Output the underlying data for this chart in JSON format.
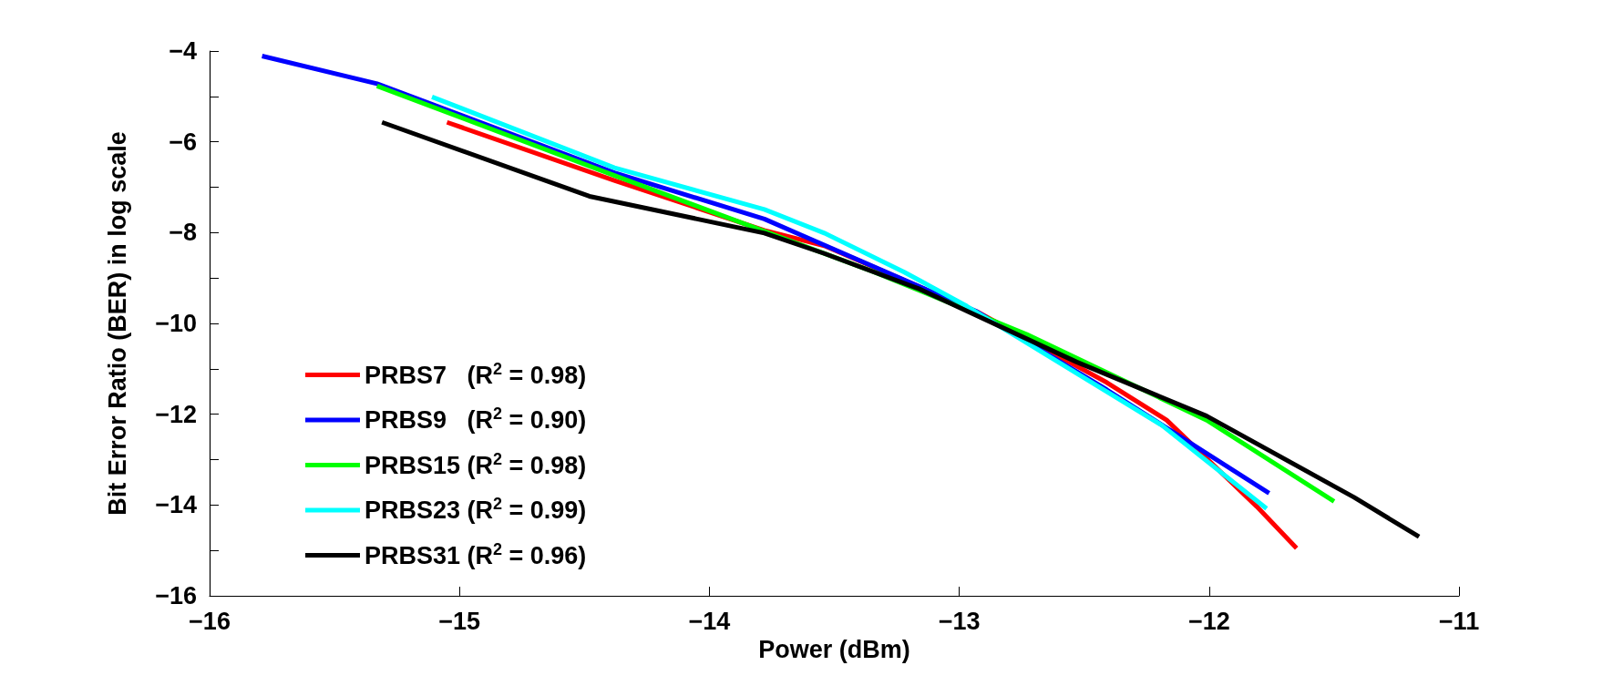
{
  "chart_data": {
    "type": "line",
    "xlabel": "Power (dBm)",
    "ylabel": "Bit Error Ratio (BER) in log scale",
    "xlim": [
      -16,
      -11
    ],
    "xticks": [
      -16,
      -15,
      -14,
      -13,
      -12,
      -11
    ],
    "ylim": [
      -16,
      -4
    ],
    "yticks": [
      -16,
      {
        "value": -15,
        "label": null
      },
      -14,
      {
        "value": -13,
        "label": null
      },
      -12,
      {
        "value": -11,
        "label": null
      },
      -10,
      {
        "value": -9,
        "label": null
      },
      -8,
      {
        "value": -7,
        "label": null
      },
      -6,
      {
        "value": -5,
        "label": null
      },
      -4
    ],
    "grid": false,
    "legend": "bottom left",
    "marker": "none",
    "line_style": "solid",
    "series": [
      {
        "name": "PRBS7   (R$^{2}$ = 0.98)",
        "color": "#ff0000",
        "x": [
          -15.05,
          -14.38,
          -13.78,
          -13.54,
          -12.93,
          -12.41,
          -12.17,
          -11.81,
          -11.65
        ],
        "values": [
          -5.57,
          -6.85,
          -7.95,
          -8.29,
          -9.74,
          -11.3,
          -12.13,
          -14.03,
          -14.95
        ]
      },
      {
        "name": "PRBS9   (R$^{2}$ = 0.90)",
        "color": "#0000ff",
        "x": [
          -15.79,
          -15.33,
          -14.38,
          -13.78,
          -12.93,
          -12.41,
          -11.76
        ],
        "values": [
          -4.11,
          -4.72,
          -6.68,
          -7.7,
          -9.74,
          -11.46,
          -13.74
        ]
      },
      {
        "name": "PRBS15 (R$^{2}$ = 0.98)",
        "color": "#00ff00",
        "x": [
          -15.33,
          -14.38,
          -13.34,
          -12.73,
          -12.01,
          -11.5
        ],
        "values": [
          -4.77,
          -6.74,
          -8.87,
          -10.24,
          -12.13,
          -13.92
        ]
      },
      {
        "name": "PRBS23 (R$^{2}$ = 0.99)",
        "color": "#00ffff",
        "x": [
          -15.11,
          -14.38,
          -13.78,
          -13.54,
          -13.22,
          -12.97,
          -12.19,
          -11.77
        ],
        "values": [
          -5.01,
          -6.57,
          -7.49,
          -8.01,
          -8.87,
          -9.62,
          -12.24,
          -14.08
        ]
      },
      {
        "name": "PRBS31 (R$^{2}$ = 0.96)",
        "color": "#000000",
        "x": [
          -15.31,
          -14.48,
          -13.78,
          -13.54,
          -13.16,
          -12.53,
          -12.01,
          -11.42,
          -11.16
        ],
        "values": [
          -5.57,
          -7.2,
          -8.01,
          -8.46,
          -9.24,
          -10.85,
          -12.04,
          -13.83,
          -14.7
        ]
      }
    ]
  }
}
